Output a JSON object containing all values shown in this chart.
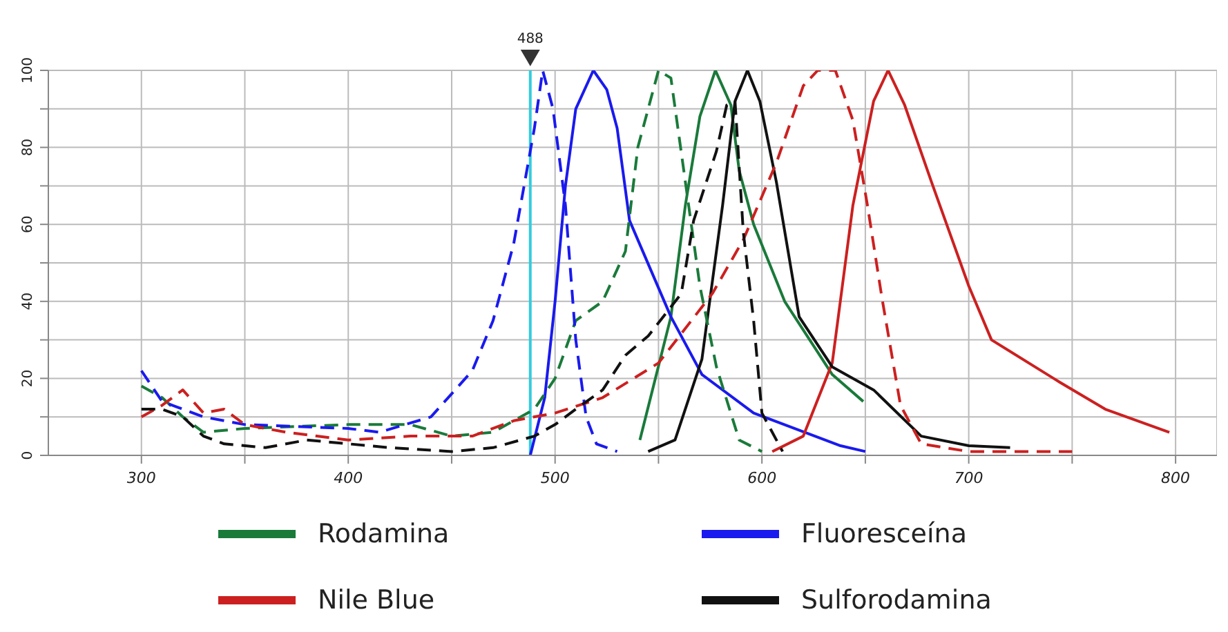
{
  "chart_data": {
    "type": "line",
    "xlim": [
      255,
      820
    ],
    "ylim": [
      0,
      100
    ],
    "xticks": [
      300,
      {
        "value": 350,
        "label": null
      },
      400,
      {
        "value": 450,
        "label": null
      },
      500,
      {
        "value": 550,
        "label": null
      },
      600,
      {
        "value": 650,
        "label": null
      },
      700,
      {
        "value": 750,
        "label": null
      },
      800
    ],
    "yticks": [
      0,
      {
        "value": 10,
        "label": null
      },
      20,
      {
        "value": 30,
        "label": null
      },
      40,
      {
        "value": 50,
        "label": null
      },
      60,
      {
        "value": 70,
        "label": null
      },
      80,
      {
        "value": 90,
        "label": null
      },
      100
    ],
    "grid": true,
    "legend": "bottom",
    "marker": "none",
    "ref_lines": [
      {
        "axis": "x",
        "value": 488,
        "label": "488",
        "color": "#33ccdd"
      }
    ],
    "series": [
      {
        "name": "Rodamina",
        "color": "#1a7a3a",
        "line_style": "solid",
        "x": [
          541,
          556,
          563,
          570,
          577.5,
          585,
          589,
          596,
          611,
          634,
          649
        ],
        "values": [
          4,
          36,
          65,
          88,
          100,
          91,
          74,
          60,
          40,
          21,
          14
        ]
      },
      {
        "name": "Fluoresceína",
        "color": "#1a1aee",
        "line_style": "solid",
        "x": [
          488,
          495,
          500,
          505,
          510,
          518.5,
          525,
          530,
          536,
          556,
          571,
          596,
          638,
          650
        ],
        "values": [
          0,
          15,
          40,
          70,
          90,
          100,
          95,
          85,
          61,
          36,
          21,
          11,
          2.5,
          1
        ]
      },
      {
        "name": "Nile Blue",
        "color": "#cc2020",
        "line_style": "solid",
        "x": [
          605,
          620,
          634,
          644,
          654,
          661,
          669,
          682,
          700,
          711,
          744,
          766,
          797
        ],
        "values": [
          1,
          5,
          24,
          65,
          92,
          100,
          91,
          71,
          44,
          30,
          19,
          12,
          6
        ]
      },
      {
        "name": "Sulforodamina",
        "color": "#111111",
        "line_style": "solid",
        "x": [
          545,
          558,
          571,
          581,
          587,
          593,
          599,
          607,
          618,
          634,
          654,
          677,
          700,
          720
        ],
        "values": [
          1,
          4,
          25,
          65,
          92,
          100,
          92,
          71,
          36,
          23,
          17,
          5,
          2.5,
          2
        ]
      },
      {
        "color": "#1a7a3a",
        "line_style": "dashed",
        "x": [
          300,
          310,
          320,
          330,
          350,
          400,
          430,
          450,
          470,
          480,
          490,
          500,
          510,
          523,
          534,
          540,
          550,
          556,
          570,
          578,
          589,
          600
        ],
        "values": [
          18,
          15,
          10,
          6,
          7,
          8,
          8,
          5,
          6,
          9,
          12,
          20,
          35,
          40,
          53,
          80,
          100,
          98,
          44,
          23,
          4,
          1
        ]
      },
      {
        "color": "#1a1aee",
        "line_style": "dashed",
        "x": [
          300,
          310,
          330,
          350,
          400,
          415,
          440,
          460,
          470,
          480,
          490,
          494,
          499,
          505,
          510,
          515,
          520,
          530
        ],
        "values": [
          22,
          14,
          10,
          8,
          7,
          6,
          10,
          22,
          35,
          55,
          85,
          100,
          90,
          65,
          30,
          10,
          3,
          1
        ]
      },
      {
        "color": "#cc2020",
        "line_style": "dashed",
        "x": [
          300,
          310,
          320,
          330,
          340,
          350,
          370,
          400,
          430,
          460,
          480,
          500,
          523,
          550,
          576,
          591,
          607,
          620,
          627,
          635.5,
          644,
          651,
          658,
          667,
          677,
          700,
          750
        ],
        "values": [
          10,
          13,
          17,
          11,
          12,
          8,
          6,
          4,
          5,
          5,
          9,
          11,
          15,
          24,
          42,
          56,
          76,
          96,
          100,
          100,
          87,
          65,
          41,
          13,
          3,
          1,
          1
        ]
      },
      {
        "color": "#111111",
        "line_style": "dashed",
        "x": [
          300,
          310,
          320,
          330,
          340,
          360,
          380,
          400,
          420,
          450,
          470,
          490,
          500,
          510,
          523,
          534,
          545,
          561,
          567,
          578,
          583,
          587,
          591,
          596,
          600,
          610
        ],
        "values": [
          12,
          12,
          10,
          5,
          3,
          2,
          4,
          3,
          2,
          1,
          2,
          5,
          8,
          12,
          17,
          26,
          31,
          42,
          61,
          79,
          91,
          92,
          58,
          35,
          11,
          1
        ]
      }
    ]
  }
}
